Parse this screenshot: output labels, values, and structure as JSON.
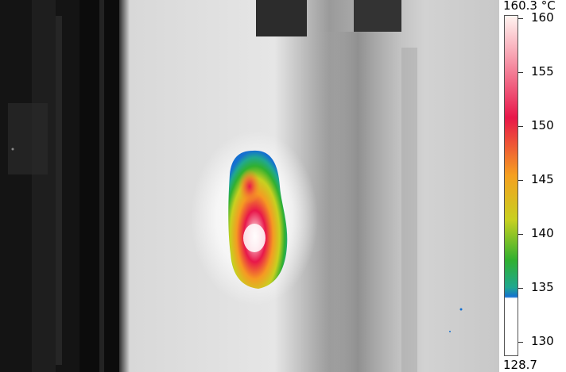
{
  "colorbar": {
    "max_label": "160.3 °C",
    "min_label": "128.7",
    "min": 128.7,
    "max": 160.3,
    "threshold": 134.0,
    "ticks": [
      {
        "value": 160,
        "label": "160"
      },
      {
        "value": 155,
        "label": "155"
      },
      {
        "value": 150,
        "label": "150"
      },
      {
        "value": 145,
        "label": "145"
      },
      {
        "value": 140,
        "label": "140"
      },
      {
        "value": 135,
        "label": "135"
      },
      {
        "value": 130,
        "label": "130"
      }
    ],
    "colors": {
      "gradient_top": "#fff4f0",
      "gradient_pink": "#f7a0b0",
      "gradient_red": "#e8174a",
      "gradient_orange": "#f5a020",
      "gradient_yellow": "#c8d020",
      "gradient_green": "#30b030",
      "gradient_teal": "#20a890",
      "gradient_blue": "#1470d0",
      "below_threshold": "#ffffff"
    }
  }
}
